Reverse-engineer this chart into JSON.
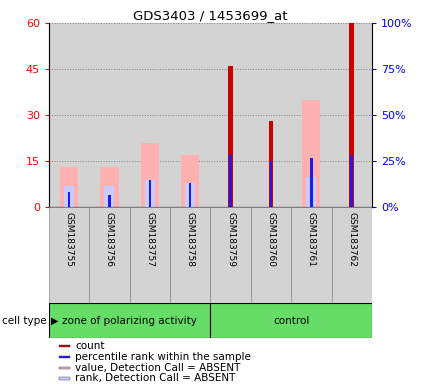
{
  "title": "GDS3403 / 1453699_at",
  "samples": [
    "GSM183755",
    "GSM183756",
    "GSM183757",
    "GSM183758",
    "GSM183759",
    "GSM183760",
    "GSM183761",
    "GSM183762"
  ],
  "ylim_left": [
    0,
    60
  ],
  "ylim_right": [
    0,
    100
  ],
  "yticks_left": [
    0,
    15,
    30,
    45,
    60
  ],
  "ytick_labels_left": [
    "0",
    "15",
    "30",
    "45",
    "60"
  ],
  "yticks_right": [
    0,
    25,
    50,
    75,
    100
  ],
  "ytick_labels_right": [
    "0%",
    "25%",
    "50%",
    "75%",
    "100%"
  ],
  "count_values": [
    0,
    0,
    0,
    0,
    46,
    28,
    0,
    60
  ],
  "percentile_values": [
    5,
    4,
    9,
    8,
    17,
    15,
    16,
    17
  ],
  "value_absent": [
    13,
    13,
    21,
    17,
    0,
    0,
    35,
    0
  ],
  "rank_absent": [
    7,
    7,
    9,
    8,
    0,
    0,
    10,
    0
  ],
  "colors": {
    "count": "#cc0000",
    "percentile": "#1a1aff",
    "value_absent": "#ffb0b0",
    "rank_absent": "#c8ccff"
  },
  "col_bg": "#d3d3d3",
  "green_color": "#66dd66",
  "legend_items": [
    {
      "label": "count",
      "color": "#cc0000"
    },
    {
      "label": "percentile rank within the sample",
      "color": "#1a1aff"
    },
    {
      "label": "value, Detection Call = ABSENT",
      "color": "#ffb0b0"
    },
    {
      "label": "rank, Detection Call = ABSENT",
      "color": "#c8ccff"
    }
  ],
  "bw_wide": 0.45,
  "bw_medium": 0.25,
  "bw_narrow": 0.12,
  "bw_thin": 0.06
}
